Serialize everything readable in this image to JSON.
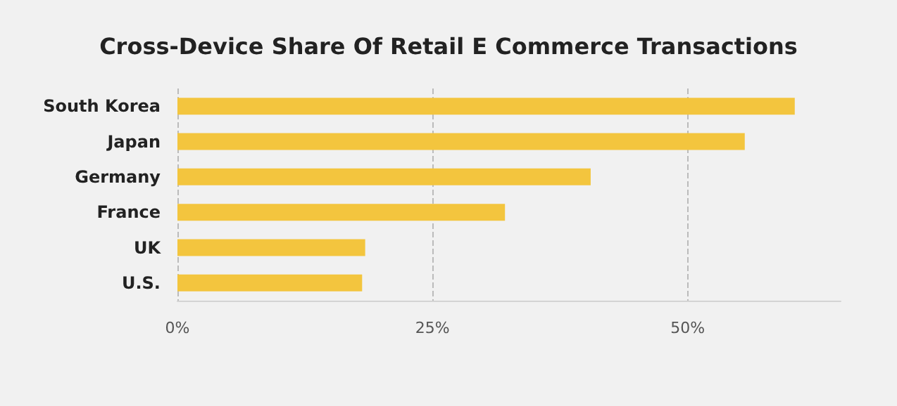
{
  "chart_data": {
    "type": "bar",
    "orientation": "horizontal",
    "title": "Cross-Device Share Of Retail E Commerce Transactions",
    "categories": [
      "South Korea",
      "Japan",
      "Germany",
      "France",
      "UK",
      "U.S."
    ],
    "values": [
      60.5,
      55.6,
      40.5,
      32.1,
      18.4,
      18.1
    ],
    "color": "#f3c53e",
    "xlim": [
      0,
      65
    ],
    "xticks": [
      {
        "value": 0,
        "label": "0%"
      },
      {
        "value": 25,
        "label": "25%"
      },
      {
        "value": 50,
        "label": "50%"
      }
    ],
    "grid": "x",
    "line_style": "dashed"
  }
}
